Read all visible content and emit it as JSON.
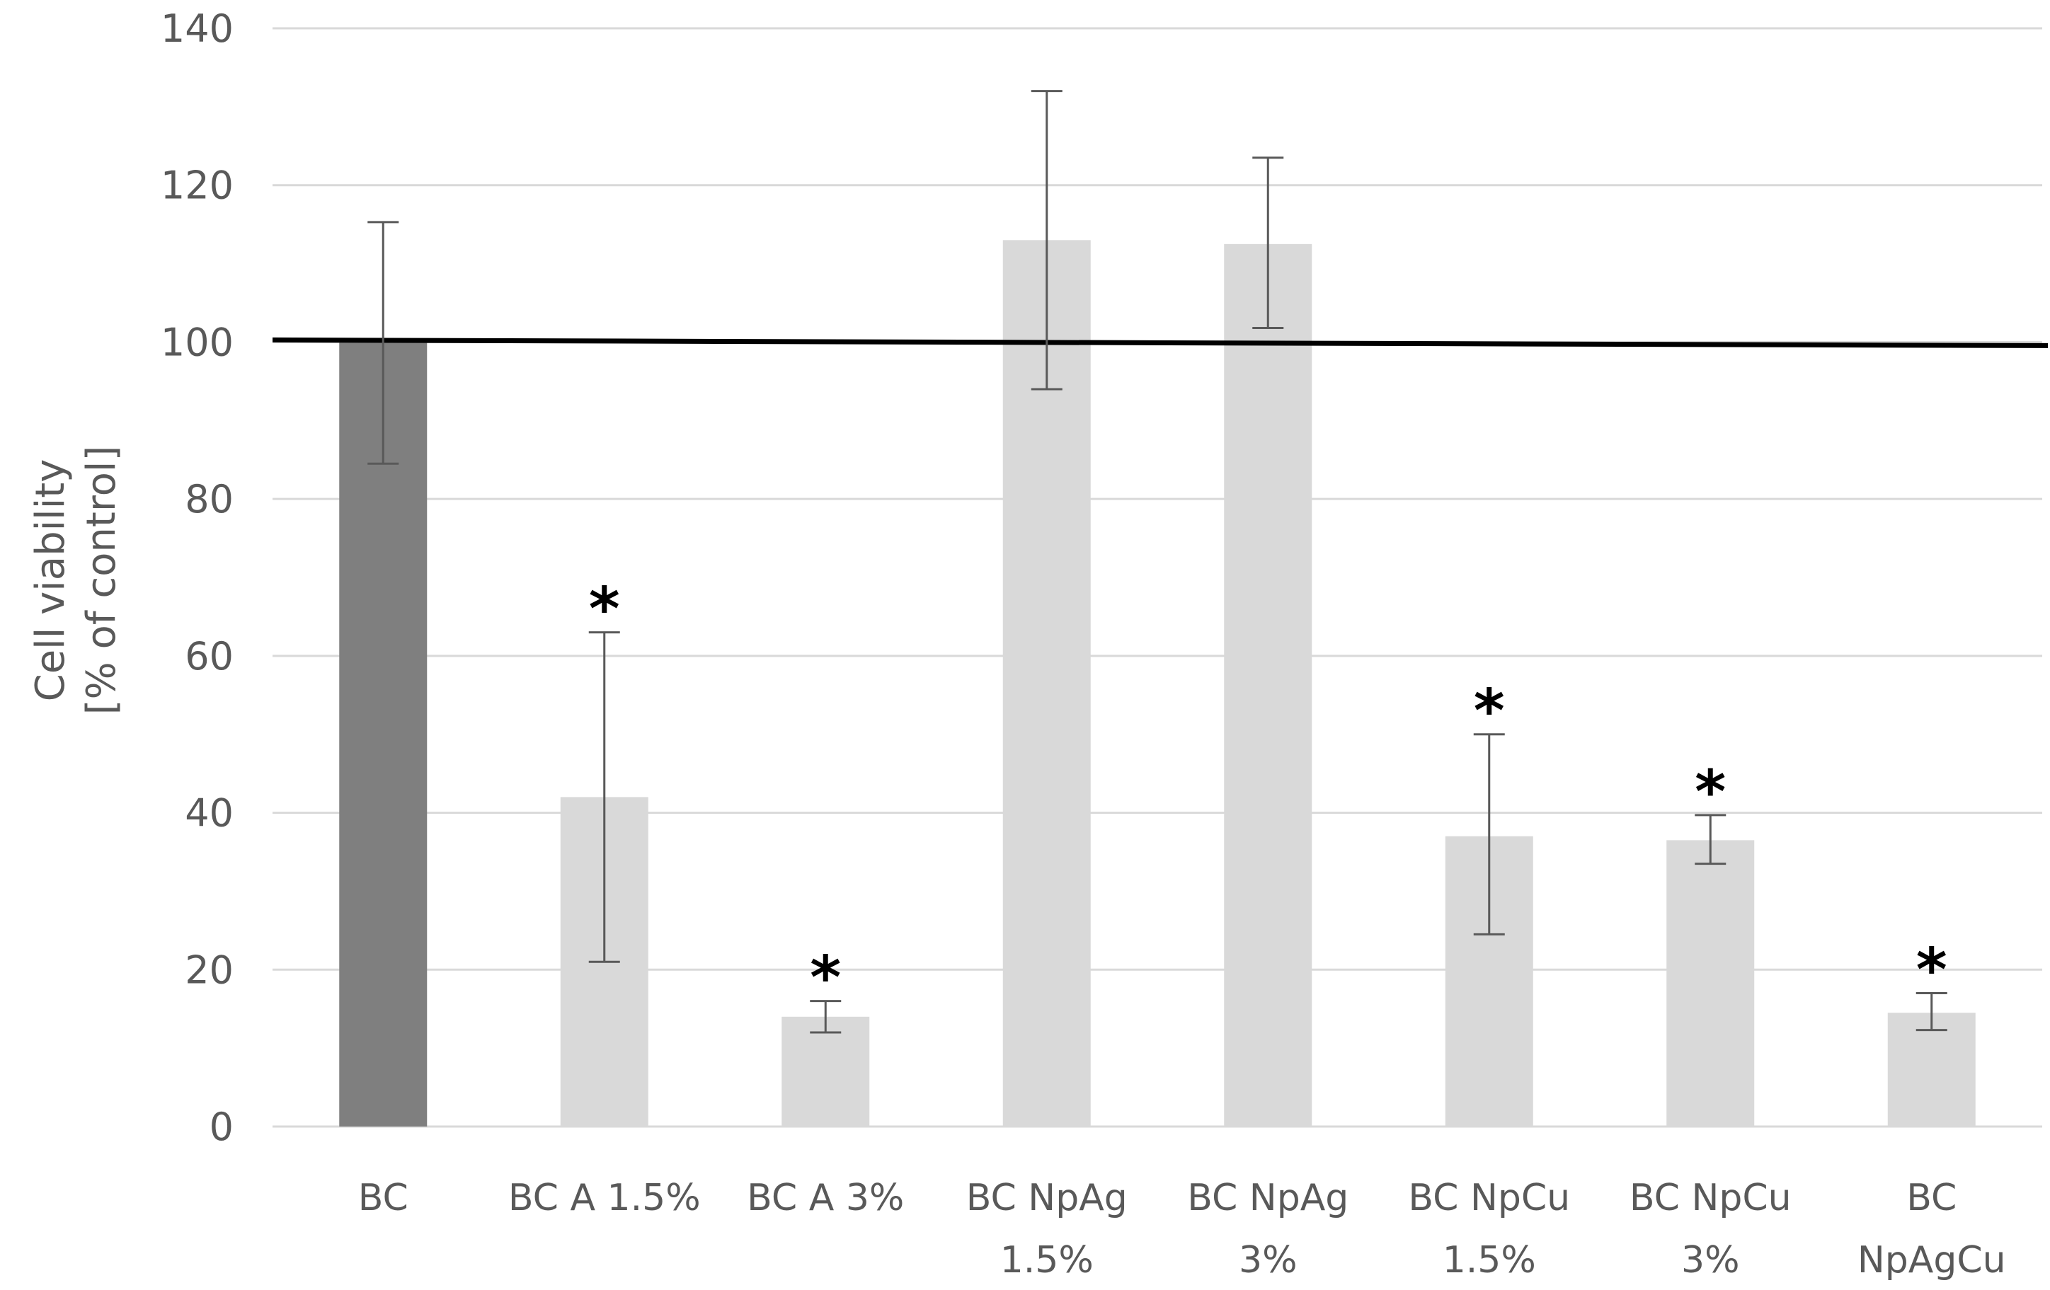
{
  "chart_data": {
    "type": "bar",
    "title": "",
    "ylabel": [
      "Cell viability",
      "[% of control]"
    ],
    "xlabel": "",
    "ylim": [
      0,
      140
    ],
    "yticks": [
      "0",
      "20",
      "40",
      "60",
      "80",
      "100",
      "120",
      "140"
    ],
    "grid": "horizontal",
    "legend": "none",
    "reference_line": 100,
    "categories": [
      [
        "BC"
      ],
      [
        "BC A 1.5%"
      ],
      [
        "BC A 3%"
      ],
      [
        "BC NpAg",
        "1.5%"
      ],
      [
        "BC NpAg",
        "3%"
      ],
      [
        "BC NpCu",
        "1.5%"
      ],
      [
        "BC NpCu",
        "3%"
      ],
      [
        "BC",
        "NpAgCu"
      ]
    ],
    "values": [
      100,
      42,
      14,
      113,
      112.5,
      37,
      36.5,
      14.5
    ],
    "error_low": [
      84.5,
      21,
      12,
      94,
      101.8,
      24.5,
      33.5,
      12.3
    ],
    "error_high": [
      115.3,
      63,
      16,
      132,
      123.5,
      50,
      39.7,
      17
    ],
    "significant": [
      "",
      "*",
      "*",
      "",
      "",
      "*",
      "*",
      "*"
    ],
    "colors": {
      "control_bar": "#7f7f7f",
      "bar": "#d9d9d9",
      "error_bar": "#595959",
      "reference_line": "#000000",
      "grid": "#d9d9d9",
      "axis_text": "#595959"
    }
  }
}
